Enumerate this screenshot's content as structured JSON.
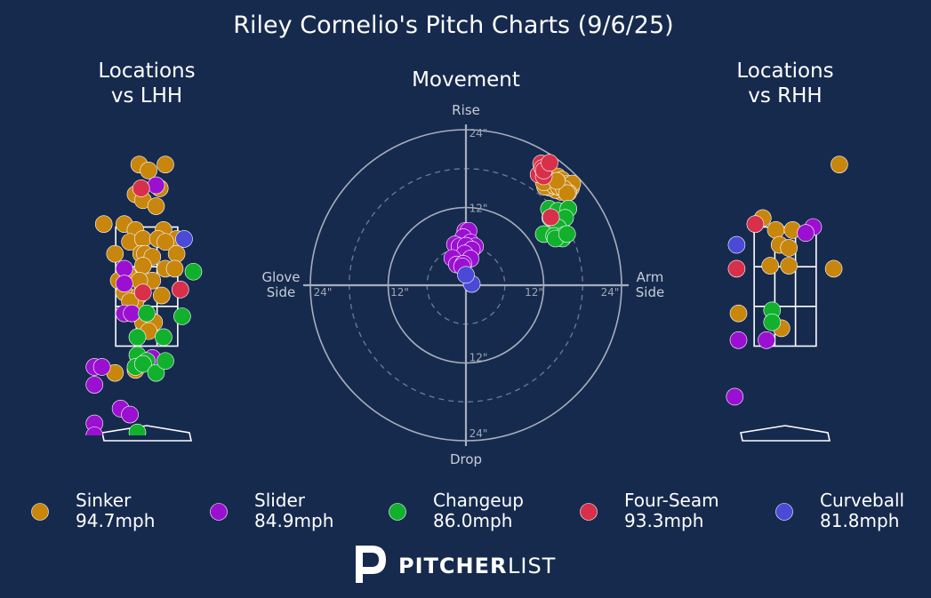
{
  "title": "Riley Cornelio's Pitch Charts (9/6/25)",
  "brand": {
    "bold": "PITCHER",
    "light": "LIST"
  },
  "colors": {
    "background": "#162a4e",
    "Sinker": "#c8860d",
    "Slider": "#9b10d0",
    "Changeup": "#11b12d",
    "Four-Seam": "#d8304a",
    "Curveball": "#4a4ad6"
  },
  "legend": [
    {
      "pitch": "Sinker",
      "speed": "94.7mph"
    },
    {
      "pitch": "Slider",
      "speed": "84.9mph"
    },
    {
      "pitch": "Changeup",
      "speed": "86.0mph"
    },
    {
      "pitch": "Four-Seam",
      "speed": "93.3mph"
    },
    {
      "pitch": "Curveball",
      "speed": "81.8mph"
    }
  ],
  "chart_data": [
    {
      "type": "scatter",
      "title": "Locations\nvs LHH",
      "xlim": [
        -2.5,
        2.5
      ],
      "ylim": [
        0,
        5
      ],
      "zone": {
        "x": [
          -0.83,
          0.83
        ],
        "y": [
          1.5,
          3.5
        ]
      },
      "series": [
        {
          "name": "Sinker",
          "points": [
            [
              -0.2,
              4.55
            ],
            [
              0.05,
              4.45
            ],
            [
              0.5,
              4.55
            ],
            [
              -0.3,
              4.05
            ],
            [
              -0.1,
              3.95
            ],
            [
              0.35,
              4.15
            ],
            [
              0.25,
              3.85
            ],
            [
              -1.15,
              3.55
            ],
            [
              -0.6,
              3.55
            ],
            [
              -0.3,
              3.45
            ],
            [
              0.45,
              3.45
            ],
            [
              0.8,
              3.3
            ],
            [
              -0.45,
              3.25
            ],
            [
              -0.1,
              3.3
            ],
            [
              0.3,
              3.3
            ],
            [
              0.5,
              3.25
            ],
            [
              -0.85,
              3.05
            ],
            [
              -0.15,
              3.05
            ],
            [
              -0.05,
              3.05
            ],
            [
              0.15,
              3.0
            ],
            [
              0.8,
              3.05
            ],
            [
              -0.1,
              2.85
            ],
            [
              0.5,
              2.8
            ],
            [
              0.75,
              2.8
            ],
            [
              -0.75,
              2.6
            ],
            [
              -0.5,
              2.7
            ],
            [
              0.15,
              2.6
            ],
            [
              -0.2,
              2.6
            ],
            [
              -0.6,
              2.4
            ],
            [
              -0.2,
              2.35
            ],
            [
              0.4,
              2.35
            ],
            [
              -0.3,
              2.25
            ],
            [
              -0.45,
              2.25
            ],
            [
              -0.1,
              1.9
            ],
            [
              0.2,
              1.9
            ],
            [
              0.05,
              1.75
            ],
            [
              -0.3,
              1.1
            ],
            [
              -0.85,
              1.05
            ]
          ]
        },
        {
          "name": "Slider",
          "points": [
            [
              0.25,
              4.2
            ],
            [
              -0.6,
              2.8
            ],
            [
              -0.6,
              2.55
            ],
            [
              -0.6,
              2.05
            ],
            [
              -0.4,
              2.05
            ],
            [
              0.15,
              1.3
            ],
            [
              -1.4,
              1.15
            ],
            [
              -1.2,
              1.15
            ],
            [
              -1.4,
              0.85
            ],
            [
              -0.7,
              0.45
            ],
            [
              -0.45,
              0.35
            ],
            [
              -1.4,
              0.2
            ],
            [
              -1.4,
              0.0
            ]
          ]
        },
        {
          "name": "Changeup",
          "points": [
            [
              1.25,
              2.75
            ],
            [
              0.95,
              2.0
            ],
            [
              0.0,
              2.05
            ],
            [
              -0.25,
              1.65
            ],
            [
              0.45,
              1.65
            ],
            [
              -0.25,
              1.35
            ],
            [
              0.0,
              1.25
            ],
            [
              -0.3,
              1.15
            ],
            [
              -0.1,
              1.2
            ],
            [
              0.25,
              1.05
            ],
            [
              0.5,
              1.25
            ],
            [
              -0.25,
              0.05
            ]
          ]
        },
        {
          "name": "Four-Seam",
          "points": [
            [
              -0.15,
              4.15
            ],
            [
              0.9,
              2.45
            ],
            [
              -0.1,
              2.4
            ]
          ]
        },
        {
          "name": "Curveball",
          "points": [
            [
              1.0,
              3.3
            ]
          ]
        }
      ]
    },
    {
      "type": "scatter",
      "title": "Movement",
      "xlabel": "Glove Side / Arm Side",
      "ylabel": "Drop / Rise",
      "xlim": [
        -24,
        24
      ],
      "ylim": [
        -24,
        24
      ],
      "rings": [
        6,
        12,
        18,
        24
      ],
      "ring_labels": [
        "12\"",
        "24\""
      ],
      "axis_words": {
        "top": "Rise",
        "bottom": "Drop",
        "left": "Glove\nSide",
        "right": "Arm\nSide"
      },
      "series": [
        {
          "name": "Sinker",
          "points": [
            [
              11.6,
              17.5
            ],
            [
              12.5,
              17.0
            ],
            [
              13.2,
              16.5
            ],
            [
              14.1,
              16.8
            ],
            [
              14.8,
              16.3
            ],
            [
              15.5,
              15.6
            ],
            [
              16.2,
              15.0
            ],
            [
              16.4,
              15.7
            ],
            [
              15.8,
              14.3
            ],
            [
              14.7,
              14.4
            ],
            [
              13.8,
              14.7
            ],
            [
              12.8,
              15.1
            ],
            [
              12.2,
              15.2
            ],
            [
              13.0,
              16.1
            ],
            [
              13.6,
              15.4
            ],
            [
              14.3,
              15.2
            ],
            [
              15.1,
              14.9
            ],
            [
              12.0,
              15.9
            ],
            [
              15.6,
              14.2
            ],
            [
              14.0,
              16.1
            ]
          ]
        },
        {
          "name": "Slider",
          "points": [
            [
              -0.1,
              8.4
            ],
            [
              0.4,
              8.4
            ],
            [
              -0.4,
              7.4
            ],
            [
              0.7,
              6.6
            ],
            [
              1.4,
              6.0
            ],
            [
              -1.7,
              6.3
            ],
            [
              -1.0,
              6.0
            ],
            [
              0.0,
              6.1
            ],
            [
              0.9,
              5.5
            ],
            [
              -0.2,
              4.9
            ],
            [
              -2.1,
              4.2
            ],
            [
              -1.4,
              3.2
            ],
            [
              0.7,
              4.1
            ],
            [
              -0.4,
              3.3
            ],
            [
              -0.6,
              2.9
            ]
          ]
        },
        {
          "name": "Changeup",
          "points": [
            [
              12.8,
              11.8
            ],
            [
              14.2,
              11.5
            ],
            [
              15.8,
              11.8
            ],
            [
              13.0,
              10.4
            ],
            [
              14.0,
              9.9
            ],
            [
              15.3,
              10.4
            ],
            [
              14.2,
              8.9
            ],
            [
              12.0,
              7.9
            ],
            [
              13.6,
              7.6
            ],
            [
              15.2,
              7.8
            ],
            [
              14.9,
              7.2
            ],
            [
              13.8,
              7.2
            ],
            [
              15.6,
              7.9
            ]
          ]
        },
        {
          "name": "Four-Seam",
          "points": [
            [
              11.6,
              18.8
            ],
            [
              11.2,
              17.1
            ],
            [
              12.0,
              16.8
            ],
            [
              11.8,
              18.1
            ],
            [
              12.0,
              17.7
            ],
            [
              12.9,
              18.9
            ],
            [
              13.1,
              10.5
            ]
          ]
        },
        {
          "name": "Curveball",
          "points": [
            [
              0.9,
              0.2
            ],
            [
              0.0,
              1.6
            ]
          ]
        }
      ]
    },
    {
      "type": "scatter",
      "title": "Locations\nvs RHH",
      "xlim": [
        -2.5,
        2.5
      ],
      "ylim": [
        0,
        5
      ],
      "zone": {
        "x": [
          -0.83,
          0.83
        ],
        "y": [
          1.5,
          3.5
        ]
      },
      "series": [
        {
          "name": "Sinker",
          "points": [
            [
              1.45,
              4.55
            ],
            [
              1.3,
              2.8
            ],
            [
              -0.6,
              3.65
            ],
            [
              -0.25,
              3.45
            ],
            [
              0.2,
              3.45
            ],
            [
              -0.15,
              3.2
            ],
            [
              0.1,
              3.15
            ],
            [
              -0.4,
              2.85
            ],
            [
              0.1,
              2.85
            ],
            [
              -1.25,
              2.05
            ],
            [
              -0.1,
              1.8
            ]
          ]
        },
        {
          "name": "Slider",
          "points": [
            [
              0.75,
              3.5
            ],
            [
              0.55,
              3.4
            ],
            [
              -1.25,
              1.6
            ],
            [
              -0.5,
              1.6
            ],
            [
              -1.35,
              0.65
            ]
          ]
        },
        {
          "name": "Changeup",
          "points": [
            [
              -0.35,
              2.1
            ],
            [
              -0.35,
              1.9
            ]
          ]
        },
        {
          "name": "Four-Seam",
          "points": [
            [
              -0.8,
              3.55
            ],
            [
              -1.3,
              2.8
            ]
          ]
        },
        {
          "name": "Curveball",
          "points": [
            [
              -1.3,
              3.2
            ]
          ]
        }
      ]
    }
  ]
}
